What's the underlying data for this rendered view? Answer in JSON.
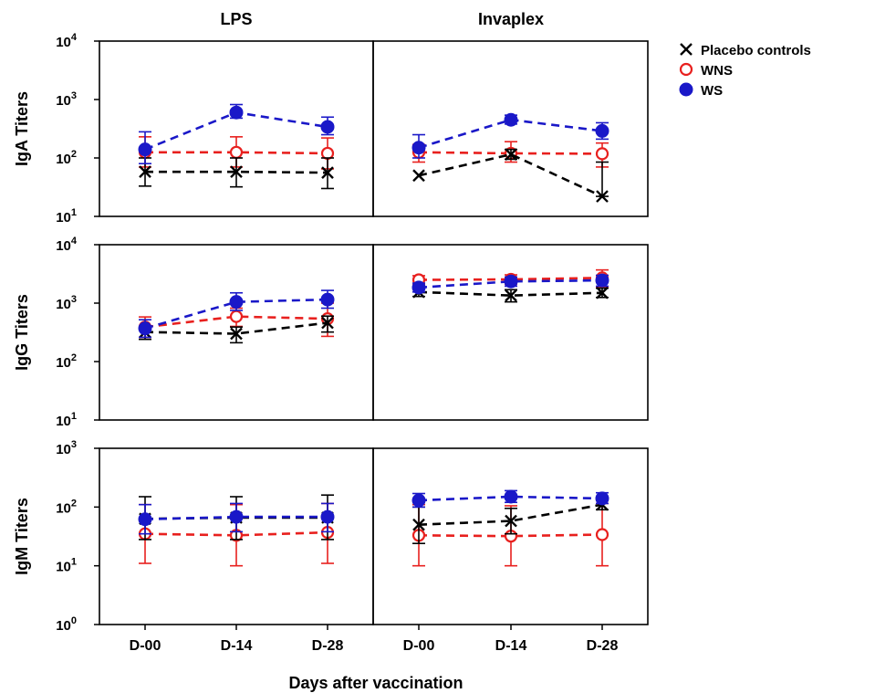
{
  "chart_data": {
    "type": "line",
    "title": "",
    "xlabel": "Days after vaccination",
    "categories": [
      "D-00",
      "D-14",
      "D-28"
    ],
    "columns": [
      "LPS",
      "Invaplex"
    ],
    "y_scale": "log",
    "legend": {
      "placement": "top-right",
      "entries": [
        {
          "name": "Placebo controls",
          "marker": "x",
          "color": "#000000"
        },
        {
          "name": "WNS",
          "marker": "open-circle",
          "color": "#e8201e"
        },
        {
          "name": "WS",
          "marker": "filled-circle",
          "color": "#1a18c8"
        }
      ]
    },
    "panels": [
      {
        "row": "IgA",
        "ylabel": "IgA Titers",
        "ylim": [
          10,
          10000
        ],
        "ytick_exponents": [
          1,
          2,
          3,
          4
        ],
        "columns": [
          {
            "column": "LPS",
            "series": [
              {
                "name": "Placebo controls",
                "values": [
                  58,
                  58,
                  56
                ],
                "err_low": [
                  33,
                  32,
                  30
                ],
                "err_high": [
                  100,
                  100,
                  100
                ]
              },
              {
                "name": "WNS",
                "values": [
                  125,
                  125,
                  120
                ],
                "err_low": [
                  70,
                  70,
                  65
                ],
                "err_high": [
                  230,
                  230,
                  220
                ]
              },
              {
                "name": "WS",
                "values": [
                  140,
                  600,
                  340
                ],
                "err_low": [
                  80,
                  480,
                  250
                ],
                "err_high": [
                  280,
                  820,
                  500
                ]
              }
            ]
          },
          {
            "column": "Invaplex",
            "series": [
              {
                "name": "Placebo controls",
                "values": [
                  50,
                  115,
                  22
                ],
                "err_low": [
                  50,
                  95,
                  22
                ],
                "err_high": [
                  50,
                  140,
                  85
                ]
              },
              {
                "name": "WNS",
                "values": [
                  125,
                  120,
                  118
                ],
                "err_low": [
                  85,
                  85,
                  70
                ],
                "err_high": [
                  170,
                  190,
                  180
                ]
              },
              {
                "name": "WS",
                "values": [
                  150,
                  450,
                  290
                ],
                "err_low": [
                  100,
                  380,
                  210
                ],
                "err_high": [
                  250,
                  540,
                  400
                ]
              }
            ]
          }
        ]
      },
      {
        "row": "IgG",
        "ylabel": "IgG Titers",
        "ylim": [
          10,
          10000
        ],
        "ytick_exponents": [
          1,
          2,
          3,
          4
        ],
        "columns": [
          {
            "column": "LPS",
            "series": [
              {
                "name": "Placebo controls",
                "values": [
                  320,
                  300,
                  460
                ],
                "err_low": [
                  240,
                  210,
                  320
                ],
                "err_high": [
                  400,
                  390,
                  600
                ]
              },
              {
                "name": "WNS",
                "values": [
                  390,
                  590,
                  540
                ],
                "err_low": [
                  260,
                  400,
                  270
                ],
                "err_high": [
                  580,
                  820,
                  1000
                ]
              },
              {
                "name": "WS",
                "values": [
                  370,
                  1050,
                  1150
                ],
                "err_low": [
                  260,
                  750,
                  820
                ],
                "err_high": [
                  520,
                  1500,
                  1650
                ]
              }
            ]
          },
          {
            "column": "Invaplex",
            "series": [
              {
                "name": "Placebo controls",
                "values": [
                  1550,
                  1350,
                  1500
                ],
                "err_low": [
                  1300,
                  1050,
                  1250
                ],
                "err_high": [
                  1850,
                  1700,
                  1800
                ]
              },
              {
                "name": "WNS",
                "values": [
                  2500,
                  2550,
                  2700
                ],
                "err_low": [
                  2100,
                  2100,
                  1900
                ],
                "err_high": [
                  2950,
                  3050,
                  3700
                ]
              },
              {
                "name": "WS",
                "values": [
                  1850,
                  2350,
                  2450
                ],
                "err_low": [
                  1550,
                  1950,
                  1950
                ],
                "err_high": [
                  2200,
                  2800,
                  3000
                ]
              }
            ]
          }
        ]
      },
      {
        "row": "IgM",
        "ylabel": "IgM Titers",
        "ylim": [
          1,
          1000
        ],
        "ytick_exponents": [
          0,
          1,
          2,
          3
        ],
        "columns": [
          {
            "column": "LPS",
            "series": [
              {
                "name": "Placebo controls",
                "values": [
                  63,
                  66,
                  66
                ],
                "err_low": [
                  28,
                  28,
                  28
                ],
                "err_high": [
                  150,
                  150,
                  160
                ]
              },
              {
                "name": "WNS",
                "values": [
                  35,
                  33,
                  37
                ],
                "err_low": [
                  11,
                  10,
                  11
                ],
                "err_high": [
                  110,
                  110,
                  115
                ]
              },
              {
                "name": "WS",
                "values": [
                  62,
                  68,
                  68
                ],
                "err_low": [
                  35,
                  38,
                  38
                ],
                "err_high": [
                  110,
                  115,
                  115
                ]
              }
            ]
          },
          {
            "column": "Invaplex",
            "series": [
              {
                "name": "Placebo controls",
                "values": [
                  50,
                  58,
                  110
                ],
                "err_low": [
                  24,
                  35,
                  90
                ],
                "err_high": [
                  100,
                  95,
                  130
                ]
              },
              {
                "name": "WNS",
                "values": [
                  33,
                  32,
                  34
                ],
                "err_low": [
                  10,
                  10,
                  10
                ],
                "err_high": [
                  110,
                  105,
                  115
                ]
              },
              {
                "name": "WS",
                "values": [
                  130,
                  150,
                  140
                ],
                "err_low": [
                  100,
                  120,
                  115
                ],
                "err_high": [
                  170,
                  190,
                  175
                ]
              }
            ]
          }
        ]
      }
    ]
  }
}
